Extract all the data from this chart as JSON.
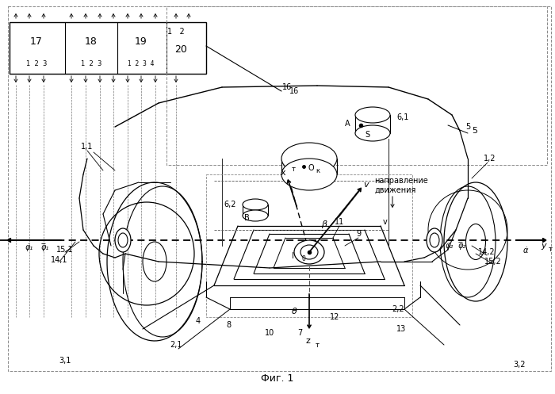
{
  "title": "Фиг. 1",
  "bg_color": "#ffffff",
  "fig_width": 7.0,
  "fig_height": 4.97,
  "box17_label": "17",
  "box18_label": "18",
  "box19_label": "19",
  "box20_label": "20",
  "caption": "Фиг. 1"
}
